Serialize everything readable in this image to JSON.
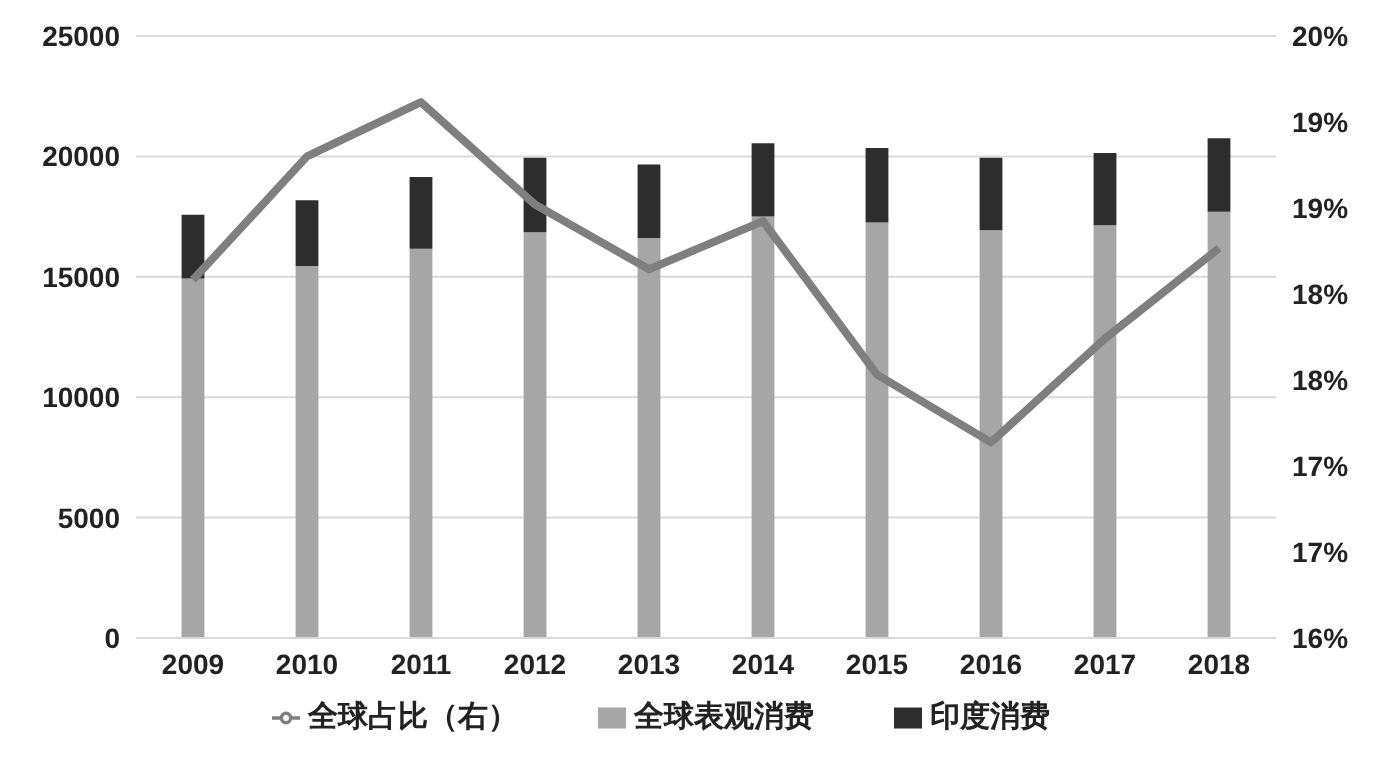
{
  "chart_data": {
    "type": "bar",
    "stacked": true,
    "categories": [
      "2009",
      "2010",
      "2011",
      "2012",
      "2013",
      "2014",
      "2015",
      "2016",
      "2017",
      "2018"
    ],
    "series": [
      {
        "name": "全球表观消费",
        "color": "#a6a6a6",
        "values": [
          14930,
          15450,
          16170,
          16850,
          16610,
          17500,
          17260,
          16930,
          17140,
          17700
        ]
      },
      {
        "name": "印度消费",
        "color": "#2d2d2d",
        "values": [
          2650,
          2730,
          2970,
          3090,
          3050,
          3050,
          3090,
          3010,
          3000,
          3050
        ]
      },
      {
        "name": "全球占比（右）",
        "type": "line",
        "axis": "y2",
        "color": "#7f7f7f",
        "values": [
          18.38,
          19.2,
          19.56,
          18.88,
          18.45,
          18.77,
          17.75,
          17.3,
          17.99,
          18.59
        ]
      }
    ],
    "ylim": [
      0,
      25000
    ],
    "yticks": [
      0,
      5000,
      10000,
      15000,
      20000,
      25000
    ],
    "y2lim": [
      16,
      20
    ],
    "y2ticks": [
      {
        "value": 16,
        "label": "16%"
      },
      {
        "value": 16.571,
        "label": "17%"
      },
      {
        "value": 17.143,
        "label": "17%"
      },
      {
        "value": 17.714,
        "label": "18%"
      },
      {
        "value": 18.286,
        "label": "18%"
      },
      {
        "value": 18.857,
        "label": "19%"
      },
      {
        "value": 19.429,
        "label": "19%"
      },
      {
        "value": 20,
        "label": "20%"
      }
    ],
    "grid": "y",
    "legend": "bottom",
    "marker": "none"
  }
}
